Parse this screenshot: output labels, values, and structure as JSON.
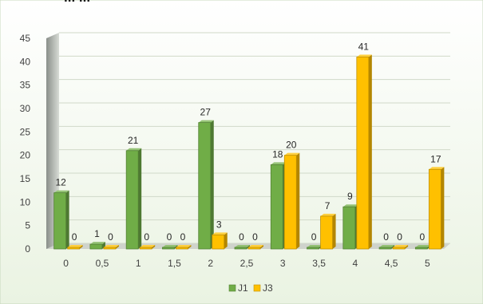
{
  "chart_data": {
    "type": "bar",
    "title": "... ...",
    "categories": [
      "0",
      "0,5",
      "1",
      "1,5",
      "2",
      "2,5",
      "3",
      "3,5",
      "4",
      "4,5",
      "5"
    ],
    "series": [
      {
        "name": "J1",
        "values": [
          12,
          1,
          21,
          0,
          27,
          0,
          18,
          0,
          9,
          0,
          0
        ],
        "color": "#70ad47"
      },
      {
        "name": "J3",
        "values": [
          0,
          0,
          0,
          0,
          3,
          0,
          20,
          7,
          41,
          0,
          17
        ],
        "color": "#ffc000"
      }
    ],
    "ylim": [
      0,
      45
    ],
    "yticks": [
      0,
      5,
      10,
      15,
      20,
      25,
      30,
      35,
      40,
      45
    ],
    "grid": true,
    "legend": "bottom"
  }
}
